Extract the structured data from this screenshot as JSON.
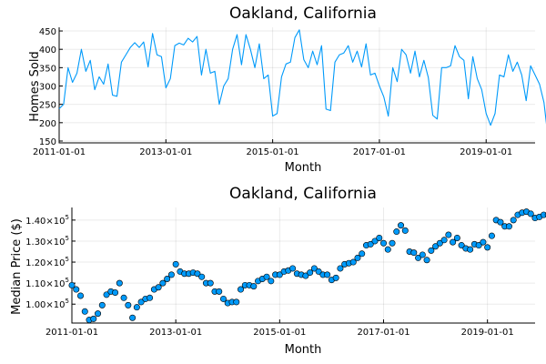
{
  "chart_data": [
    {
      "type": "line",
      "title": "Oakland, California",
      "xlabel": "Month",
      "ylabel": "Homes Sold",
      "xlim": [
        "2011-01-01",
        "2019-12-01"
      ],
      "ylim": [
        145,
        460
      ],
      "xticks": [
        "2011-01-01",
        "2013-01-01",
        "2015-01-01",
        "2017-01-01",
        "2019-01-01"
      ],
      "yticks": [
        150,
        200,
        250,
        300,
        350,
        400,
        450
      ],
      "grid": true,
      "legend": "none",
      "color": "#009AFA",
      "series": [
        {
          "x_start": "2011-01-01",
          "interval": "month",
          "values": [
            238,
            250,
            350,
            310,
            335,
            400,
            340,
            370,
            290,
            325,
            305,
            360,
            275,
            272,
            365,
            385,
            405,
            418,
            405,
            420,
            352,
            443,
            385,
            380,
            295,
            320,
            410,
            417,
            412,
            430,
            420,
            435,
            330,
            400,
            335,
            340,
            250,
            300,
            320,
            400,
            440,
            358,
            440,
            400,
            350,
            415,
            320,
            330,
            218,
            225,
            325,
            360,
            365,
            432,
            453,
            372,
            350,
            395,
            358,
            410,
            237,
            233,
            365,
            385,
            390,
            410,
            365,
            395,
            352,
            415,
            330,
            335,
            300,
            270,
            218,
            350,
            312,
            400,
            385,
            335,
            395,
            325,
            370,
            323,
            220,
            210,
            350,
            350,
            355,
            410,
            380,
            370,
            265,
            380,
            320,
            290,
            225,
            193,
            225,
            330,
            325,
            385,
            340,
            365,
            330,
            260,
            355,
            330,
            305,
            255,
            150
          ]
        }
      ]
    },
    {
      "type": "scatter",
      "title": "Oakland, California",
      "xlabel": "Month",
      "ylabel": "Median Price ($)",
      "xlim": [
        "2011-01-01",
        "2019-12-01"
      ],
      "ylim": [
        91000,
        146000
      ],
      "xticks": [
        "2011-01-01",
        "2013-01-01",
        "2015-01-01",
        "2017-01-01",
        "2019-01-01"
      ],
      "yticks": [
        100000,
        110000,
        120000,
        130000,
        140000
      ],
      "ytick_base": "10",
      "ytick_mantissas": [
        "1.00×10",
        "1.10×10",
        "1.20×10",
        "1.30×10",
        "1.40×10"
      ],
      "ytick_exponent": "5",
      "grid": true,
      "legend": "none",
      "color": "#009AFA",
      "series": [
        {
          "x_start": "2011-01-01",
          "interval": "month",
          "values": [
            109000,
            107000,
            104000,
            96500,
            92500,
            93000,
            95500,
            99500,
            104500,
            106000,
            105500,
            110000,
            103000,
            99500,
            93500,
            98500,
            101000,
            102500,
            103000,
            107000,
            108000,
            110000,
            112000,
            114000,
            119000,
            115500,
            114500,
            114500,
            115000,
            114500,
            113000,
            110000,
            110000,
            106000,
            106000,
            102500,
            100500,
            101000,
            101000,
            107000,
            109000,
            109000,
            108500,
            111000,
            112000,
            113000,
            111000,
            114000,
            114000,
            115500,
            116000,
            117000,
            114500,
            114000,
            113500,
            115000,
            117000,
            115500,
            114000,
            114000,
            111500,
            112500,
            117000,
            119000,
            119500,
            120000,
            122000,
            124000,
            128000,
            128500,
            130000,
            131500,
            129000,
            126000,
            129000,
            134500,
            137500,
            135000,
            125000,
            124500,
            122000,
            123500,
            121000,
            125500,
            127500,
            129000,
            130500,
            133000,
            129500,
            131500,
            128000,
            126500,
            126000,
            128500,
            128000,
            129500,
            127000,
            132500,
            140000,
            139000,
            137000,
            137000,
            140000,
            142500,
            143500,
            144000,
            143000,
            141000,
            141500,
            142500,
            142500
          ]
        }
      ]
    }
  ]
}
